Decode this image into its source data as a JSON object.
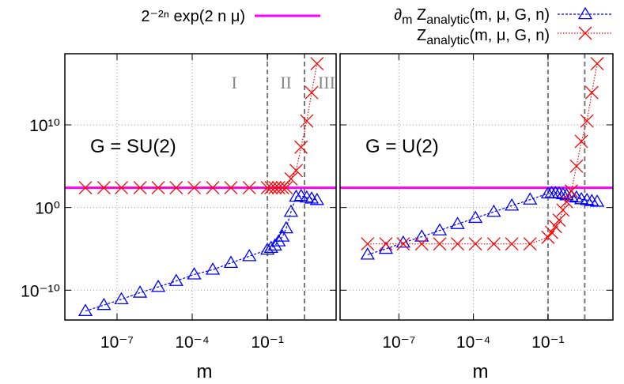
{
  "chart_data": [
    {
      "type": "line",
      "log_x": true,
      "log_y": true,
      "grid": true,
      "xlabel": "m",
      "annotation": "G = SU(2)",
      "regions": [
        "I",
        "II",
        "III"
      ],
      "vlines": [
        0.1,
        3
      ],
      "xlim": [
        8.3e-10,
        55
      ],
      "ylim": [
        2.5e-14,
        4e+18
      ],
      "xticks": [
        {
          "value": 1e-07,
          "label": "10⁻⁷"
        },
        {
          "value": 0.0001,
          "label": "10⁻⁴"
        },
        {
          "value": 0.1,
          "label": "10⁻¹"
        }
      ],
      "yticks": [
        {
          "value": 1e-10,
          "label": "10⁻¹⁰"
        },
        {
          "value": 1,
          "label": "10⁰"
        },
        {
          "value": 10000000000,
          "label": "10¹⁰"
        }
      ],
      "reference_line": {
        "name": "2⁻²ⁿ exp(2 n μ)",
        "value": 250,
        "color": "#ff00ff"
      },
      "x": [
        5.5e-09,
        3e-08,
        1.5e-07,
        8.3e-07,
        4.4e-06,
        2.3e-05,
        0.00012,
        0.00066,
        0.0035,
        0.019,
        0.1,
        0.14,
        0.2,
        0.28,
        0.4,
        0.56,
        0.87,
        1.4,
        2.2,
        3.7,
        5.8,
        9.5
      ],
      "series": [
        {
          "name": "∂m Zanalytic(m, μ, G, n)",
          "color": "#0000ff",
          "marker": "triangle",
          "values": [
            3e-13,
            1.6e-12,
            8e-12,
            5e-11,
            2.5e-10,
            1.3e-09,
            8e-09,
            3e-08,
            2e-07,
            1.3e-06,
            8e-06,
            1.3e-05,
            2.5e-05,
            8e-05,
            0.0003,
            0.003,
            0.3,
            20,
            25,
            16,
            12,
            8
          ]
        },
        {
          "name": "Zanalytic(m, μ, G, n)",
          "color": "#ff0000",
          "marker": "cross",
          "values": [
            250,
            250,
            250,
            250,
            250,
            250,
            250,
            250,
            250,
            250,
            250,
            250,
            250,
            250,
            250,
            250,
            3000,
            30000,
            20000000,
            30000000000,
            80000000000000,
            250000000000000000
          ]
        }
      ]
    },
    {
      "type": "line",
      "log_x": true,
      "log_y": true,
      "grid": true,
      "ytick_labels": false,
      "xlabel": "m",
      "annotation": "G = U(2)",
      "vlines": [
        0.1,
        3
      ],
      "xlim": [
        4.3e-10,
        41
      ],
      "ylim": [
        2.5e-14,
        4e+18
      ],
      "xticks": [
        {
          "value": 1e-07,
          "label": "10⁻⁷"
        },
        {
          "value": 0.0001,
          "label": "10⁻⁴"
        },
        {
          "value": 0.1,
          "label": "10⁻¹"
        }
      ],
      "yticks": [
        1e-10,
        1,
        10000000000
      ],
      "reference_line": {
        "value": 250,
        "color": "#ff00ff"
      },
      "x": [
        5.5e-09,
        3e-08,
        1.5e-07,
        8.3e-07,
        4.4e-06,
        2.3e-05,
        0.00012,
        0.00066,
        0.0035,
        0.019,
        0.1,
        0.14,
        0.2,
        0.28,
        0.4,
        0.56,
        0.87,
        1.4,
        2.2,
        3.7,
        5.8,
        9.5
      ],
      "series": [
        {
          "color": "#0000ff",
          "marker": "triangle",
          "values": [
            2e-06,
            1e-05,
            5.6e-05,
            0.0003,
            0.0017,
            0.01,
            0.055,
            0.3,
            1.7,
            9,
            50,
            56,
            56,
            50,
            40,
            30,
            20,
            16,
            10,
            8,
            6,
            5
          ]
        },
        {
          "color": "#ff0000",
          "marker": "cross",
          "values": [
            4e-05,
            4e-05,
            4e-05,
            4e-05,
            4e-05,
            4e-05,
            4e-05,
            4e-05,
            4e-05,
            4e-05,
            0.00025,
            0.001,
            0.005,
            0.03,
            0.5,
            5,
            100,
            100000,
            100000000,
            30000000000,
            80000000000000,
            250000000000000000
          ]
        }
      ]
    }
  ]
}
